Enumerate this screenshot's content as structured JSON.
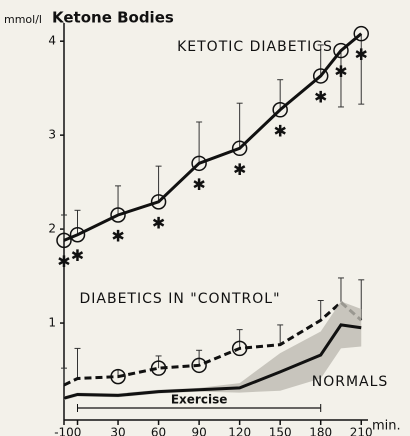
{
  "chart_data": {
    "type": "line",
    "title": "Ketone Bodies",
    "y_label": "mmol/l",
    "x_label": "min.",
    "x": [
      -10,
      0,
      30,
      60,
      90,
      120,
      150,
      180,
      195,
      210
    ],
    "xlim": [
      -10,
      215
    ],
    "xticks": [
      -10,
      0,
      30,
      60,
      90,
      120,
      150,
      180,
      210
    ],
    "ylim": [
      0,
      4.3
    ],
    "yticks": [
      1,
      2,
      3,
      4
    ],
    "series": [
      {
        "name": "KETOTIC DIABETICS",
        "color": "#111111",
        "line": "solid",
        "values": [
          1.88,
          1.94,
          2.15,
          2.29,
          2.7,
          2.86,
          3.27,
          3.63,
          3.9,
          4.08
        ],
        "errors_high": [
          0.27,
          0.26,
          0.31,
          0.38,
          0.44,
          0.48,
          0.32,
          0.33,
          null,
          null
        ],
        "errors_low": [
          null,
          null,
          null,
          null,
          null,
          null,
          null,
          null,
          0.6,
          0.75
        ],
        "circled": [
          true,
          true,
          true,
          true,
          true,
          true,
          true,
          true,
          true,
          true
        ],
        "asterisk": [
          true,
          true,
          true,
          true,
          true,
          true,
          true,
          true,
          true,
          true
        ]
      },
      {
        "name": "DIABETICS IN \"CONTROL\"",
        "color": "#111111",
        "line": "dashed",
        "values": [
          0.34,
          0.41,
          0.43,
          0.52,
          0.55,
          0.73,
          0.77,
          1.03,
          1.22,
          1.03
        ],
        "errors_high": [
          0.18,
          0.32,
          0.07,
          0.13,
          0.16,
          0.2,
          0.21,
          0.21,
          0.26,
          0.43
        ],
        "errors_low": [
          null,
          null,
          null,
          null,
          null,
          null,
          null,
          null,
          null,
          null
        ],
        "circled": [
          false,
          false,
          true,
          true,
          true,
          true,
          false,
          false,
          false,
          false
        ],
        "asterisk": [
          false,
          false,
          false,
          false,
          false,
          false,
          false,
          false,
          false,
          false
        ]
      },
      {
        "name": "NORMALS",
        "color": "#111111",
        "line": "thick",
        "values": [
          0.2,
          0.24,
          0.23,
          0.27,
          0.29,
          0.31,
          0.48,
          0.66,
          0.98,
          0.95
        ],
        "spread": [
          0.02,
          0.02,
          0.02,
          0.02,
          0.02,
          0.05,
          0.2,
          0.25,
          0.25,
          0.2
        ],
        "band_color": "#bdbab2",
        "circled": [
          false,
          false,
          false,
          false,
          false,
          false,
          false,
          false,
          false,
          false
        ],
        "asterisk": [
          false,
          false,
          false,
          false,
          false,
          false,
          false,
          false,
          false,
          false
        ]
      }
    ],
    "annotations": [
      {
        "text": "Exercise",
        "x_start": 0,
        "x_end": 180
      }
    ]
  }
}
